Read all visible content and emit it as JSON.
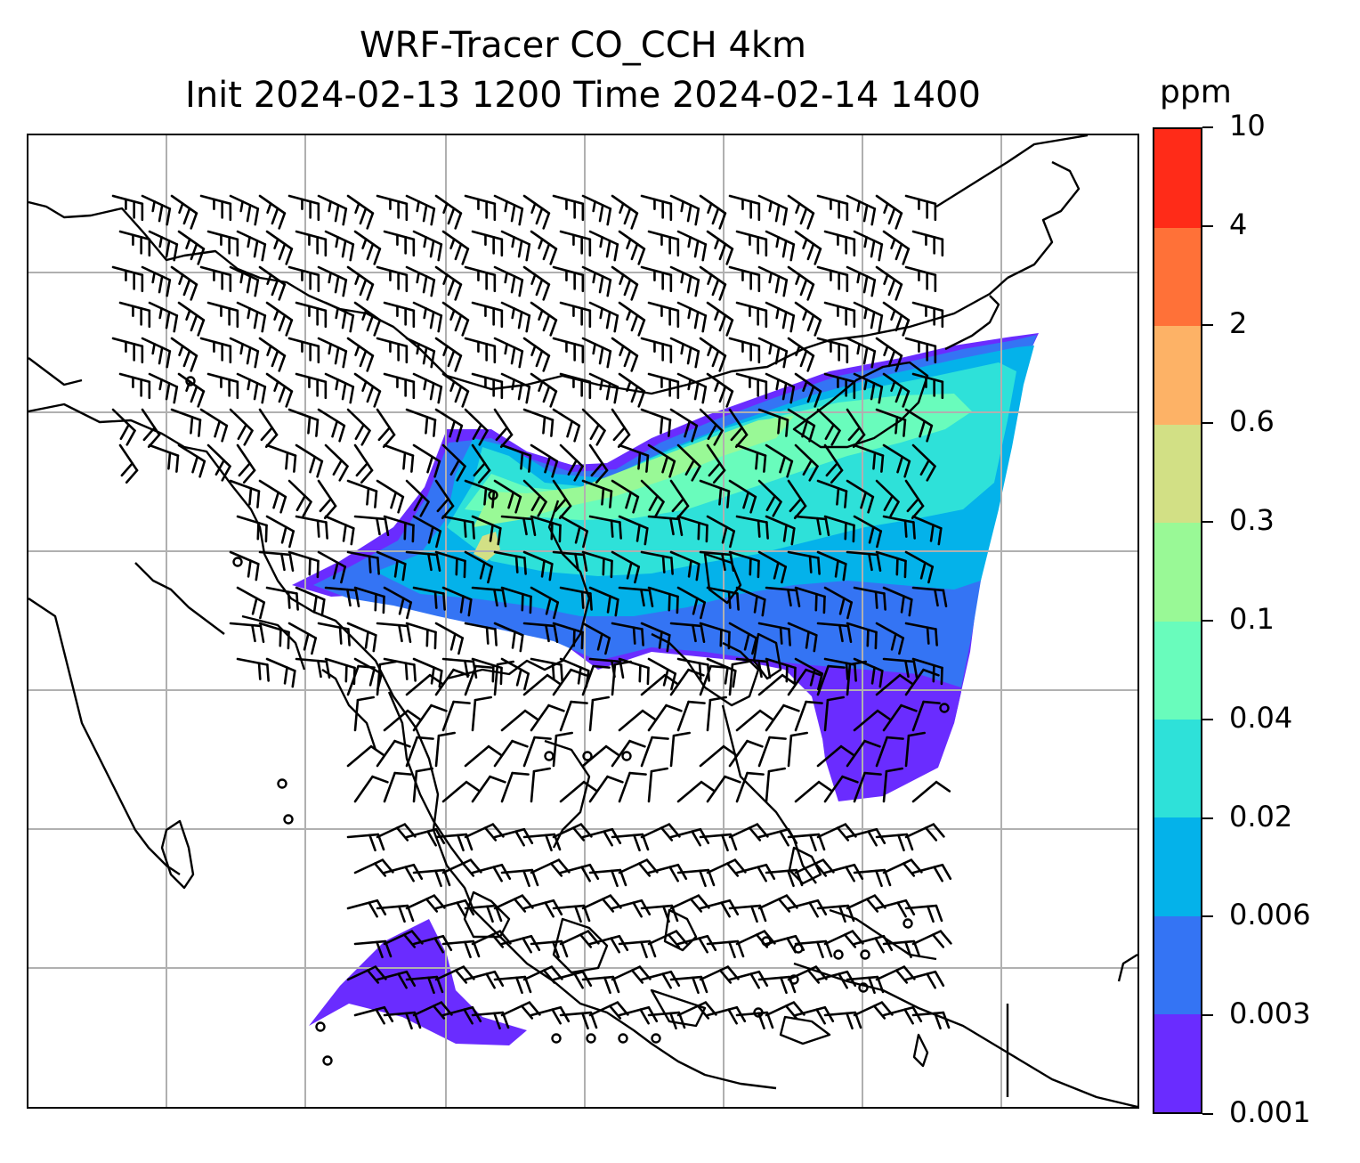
{
  "title": {
    "line1": "WRF-Tracer CO_CCH 4km",
    "line2": "Init 2024-02-13 1200 Time 2024-02-14 1400"
  },
  "colorbar": {
    "units": "ppm",
    "levels": [
      "0.001",
      "0.003",
      "0.006",
      "0.02",
      "0.04",
      "0.1",
      "0.3",
      "0.6",
      "2",
      "4",
      "10"
    ],
    "colors": [
      "#6a2cff",
      "#3474f4",
      "#04b2ea",
      "#2ee1d9",
      "#69fcbc",
      "#99f996",
      "#d2e085",
      "#fdb266",
      "#ff7138",
      "#ff2b18"
    ]
  },
  "map": {
    "field": "CO_CCH",
    "level": "4km",
    "graticule": true,
    "wind_barbs": true,
    "coastlines": true
  },
  "icons": {
    "barb": "wind-barb-icon",
    "calm": "calm-circle-icon"
  }
}
